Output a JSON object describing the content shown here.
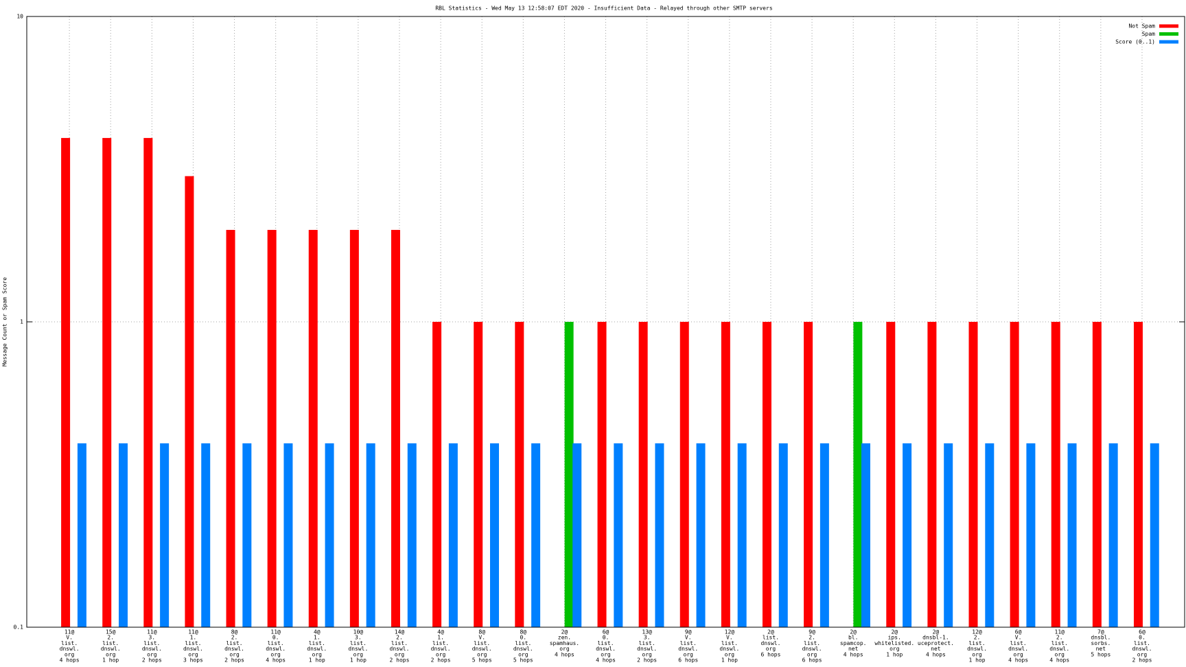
{
  "chart_data": {
    "type": "bar",
    "title": "RBL Statistics - Wed May 13 12:58:07 EDT 2020 - Insufficient Data - Relayed through other SMTP servers",
    "y_label": "Message Count or Spam Score",
    "log_scale": true,
    "grid": true,
    "legend_position": "top-right",
    "ylim": [
      0.1,
      10
    ],
    "yticks": [
      0.1,
      1,
      10
    ],
    "categories": [
      [
        "11@",
        "V.",
        "list.",
        "dnswl.",
        "org",
        "4 hops"
      ],
      [
        "15@",
        "2.",
        "list.",
        "dnswl.",
        "org",
        "1 hop"
      ],
      [
        "11@",
        "3.",
        "list.",
        "dnswl.",
        "org",
        "2 hops"
      ],
      [
        "11@",
        "1.",
        "list.",
        "dnswl.",
        "org",
        "3 hops"
      ],
      [
        "8@",
        "2.",
        "list.",
        "dnswl.",
        "org",
        "2 hops"
      ],
      [
        "11@",
        "0.",
        "list.",
        "dnswl.",
        "org",
        "4 hops"
      ],
      [
        "4@",
        "1.",
        "list.",
        "dnswl.",
        "org",
        "1 hop"
      ],
      [
        "10@",
        "3.",
        "list.",
        "dnswl.",
        "org",
        "1 hop"
      ],
      [
        "14@",
        "2.",
        "list.",
        "dnswl.",
        "org",
        "2 hops"
      ],
      [
        "4@",
        "1.",
        "list.",
        "dnswl.",
        "org",
        "2 hops"
      ],
      [
        "8@",
        "V.",
        "list.",
        "dnswl.",
        "org",
        "5 hops"
      ],
      [
        "8@",
        "0.",
        "list.",
        "dnswl.",
        "org",
        "5 hops"
      ],
      [
        "2@",
        "zen.",
        "spamhaus.",
        "org",
        "4 hops"
      ],
      [
        "6@",
        "0.",
        "list.",
        "dnswl.",
        "org",
        "4 hops"
      ],
      [
        "13@",
        "3.",
        "list.",
        "dnswl.",
        "org",
        "2 hops"
      ],
      [
        "9@",
        "V.",
        "list.",
        "dnswl.",
        "org",
        "6 hops"
      ],
      [
        "12@",
        "V.",
        "list.",
        "dnswl.",
        "org",
        "1 hop"
      ],
      [
        "2@",
        "list.",
        "dnswl.",
        "org",
        "6 hops"
      ],
      [
        "9@",
        "2.",
        "list.",
        "dnswl.",
        "org",
        "6 hops"
      ],
      [
        "2@",
        "bl.",
        "spamcop.",
        "net",
        "4 hops"
      ],
      [
        "2@",
        "ips.",
        "whitelisted.",
        "org",
        "1 hop"
      ],
      [
        "2@",
        "dnsbl-1.",
        "uceprotect.",
        "net",
        "4 hops"
      ],
      [
        "12@",
        "2.",
        "list.",
        "dnswl.",
        "org",
        "1 hop"
      ],
      [
        "6@",
        "V.",
        "list.",
        "dnswl.",
        "org",
        "4 hops"
      ],
      [
        "11@",
        "2.",
        "list.",
        "dnswl.",
        "org",
        "4 hops"
      ],
      [
        "7@",
        "dnsbl.",
        "sorbs.",
        "net",
        "5 hops"
      ],
      [
        "6@",
        "0.",
        "list.",
        "dnswl.",
        "org",
        "2 hops"
      ]
    ],
    "series": [
      {
        "name": "Not Spam",
        "color": "#ff0000",
        "values": [
          4,
          4,
          4,
          3,
          2,
          2,
          2,
          2,
          2,
          1,
          1,
          1,
          null,
          1,
          1,
          1,
          1,
          1,
          1,
          null,
          1,
          1,
          1,
          1,
          1,
          1,
          1
        ]
      },
      {
        "name": "Spam",
        "color": "#00c000",
        "values": [
          null,
          null,
          null,
          null,
          null,
          null,
          null,
          null,
          null,
          null,
          null,
          null,
          1,
          null,
          null,
          null,
          null,
          null,
          null,
          1,
          null,
          null,
          null,
          null,
          null,
          null,
          null
        ]
      },
      {
        "name": "Score (0..1)",
        "color": "#0080ff",
        "values": [
          0.4,
          0.4,
          0.4,
          0.4,
          0.4,
          0.4,
          0.4,
          0.4,
          0.4,
          0.4,
          0.4,
          0.4,
          0.4,
          0.4,
          0.4,
          0.4,
          0.4,
          0.4,
          0.4,
          0.4,
          0.4,
          0.4,
          0.4,
          0.4,
          0.4,
          0.4,
          0.4
        ]
      }
    ]
  }
}
